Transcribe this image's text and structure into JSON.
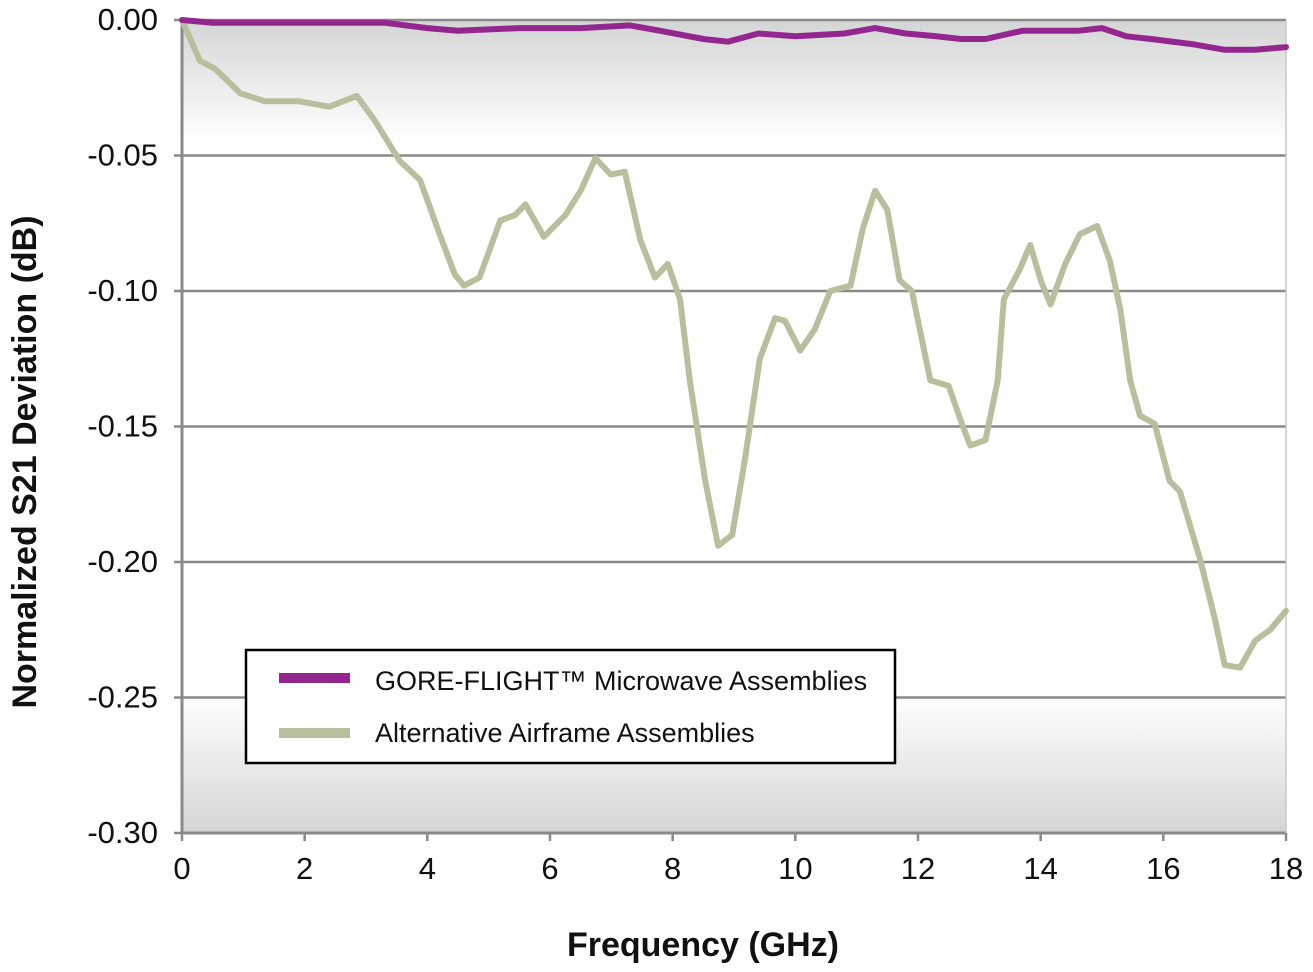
{
  "chart_data": {
    "type": "line",
    "title": "",
    "xlabel": "Frequency (GHz)",
    "ylabel": "Normalized S21 Deviation (dB)",
    "xlim": [
      0,
      18
    ],
    "ylim": [
      -0.3,
      0.0
    ],
    "xticks": [
      "0",
      "2",
      "4",
      "6",
      "8",
      "10",
      "12",
      "14",
      "16",
      "18"
    ],
    "xtick_values": [
      0,
      2,
      4,
      6,
      8,
      10,
      12,
      14,
      16,
      18
    ],
    "yticks": [
      "0.00",
      "-0.05",
      "-0.10",
      "-0.15",
      "-0.20",
      "-0.25",
      "-0.30"
    ],
    "ytick_values": [
      0,
      -0.05,
      -0.1,
      -0.15,
      -0.2,
      -0.25,
      -0.3
    ],
    "grid": "horizontal",
    "legend_position": "bottom-left",
    "series": [
      {
        "name": "GORE-FLIGHT™ Microwave Assemblies",
        "color": "#93278f",
        "x": [
          0,
          0.5,
          1.5,
          2.5,
          3.3,
          4.0,
          4.5,
          5.5,
          6.5,
          7.3,
          7.8,
          8.5,
          8.9,
          9.4,
          10.0,
          10.8,
          11.3,
          11.8,
          12.3,
          12.7,
          13.1,
          13.7,
          14.2,
          14.6,
          15.0,
          15.4,
          15.8,
          16.5,
          17.0,
          17.5,
          18.0
        ],
        "y": [
          0,
          -0.001,
          -0.001,
          -0.001,
          -0.001,
          -0.003,
          -0.004,
          -0.003,
          -0.003,
          -0.002,
          -0.004,
          -0.007,
          -0.008,
          -0.005,
          -0.006,
          -0.005,
          -0.003,
          -0.005,
          -0.006,
          -0.007,
          -0.007,
          -0.004,
          -0.004,
          -0.004,
          -0.003,
          -0.006,
          -0.007,
          -0.009,
          -0.011,
          -0.011,
          -0.01
        ]
      },
      {
        "name": "Alternative Airframe Assemblies",
        "color": "#b8bf9d",
        "x": [
          0,
          0.29,
          0.54,
          0.95,
          1.35,
          1.92,
          2.4,
          2.85,
          3.14,
          3.55,
          3.88,
          4.2,
          4.45,
          4.6,
          4.85,
          5.19,
          5.43,
          5.6,
          5.9,
          6.25,
          6.5,
          6.74,
          6.99,
          7.22,
          7.47,
          7.71,
          7.92,
          8.12,
          8.28,
          8.53,
          8.74,
          8.97,
          9.18,
          9.42,
          9.67,
          9.83,
          10.08,
          10.32,
          10.57,
          10.9,
          11.1,
          11.3,
          11.5,
          11.7,
          11.9,
          12.2,
          12.5,
          12.7,
          12.85,
          13.1,
          13.3,
          13.4,
          13.66,
          13.83,
          14.0,
          14.16,
          14.4,
          14.64,
          14.92,
          15.13,
          15.3,
          15.46,
          15.62,
          15.86,
          16.1,
          16.27,
          16.6,
          16.84,
          17.0,
          17.25,
          17.5,
          17.74,
          18.0
        ],
        "y": [
          0,
          -0.015,
          -0.018,
          -0.027,
          -0.03,
          -0.03,
          -0.032,
          -0.028,
          -0.037,
          -0.052,
          -0.059,
          -0.079,
          -0.094,
          -0.098,
          -0.095,
          -0.074,
          -0.072,
          -0.068,
          -0.08,
          -0.072,
          -0.063,
          -0.051,
          -0.057,
          -0.056,
          -0.081,
          -0.095,
          -0.09,
          -0.103,
          -0.133,
          -0.17,
          -0.194,
          -0.19,
          -0.162,
          -0.125,
          -0.11,
          -0.111,
          -0.122,
          -0.114,
          -0.1,
          -0.098,
          -0.077,
          -0.063,
          -0.07,
          -0.096,
          -0.1,
          -0.133,
          -0.135,
          -0.148,
          -0.157,
          -0.155,
          -0.133,
          -0.103,
          -0.092,
          -0.083,
          -0.096,
          -0.105,
          -0.09,
          -0.079,
          -0.076,
          -0.089,
          -0.107,
          -0.133,
          -0.146,
          -0.149,
          -0.17,
          -0.174,
          -0.199,
          -0.221,
          -0.238,
          -0.239,
          -0.229,
          -0.225,
          -0.218
        ]
      }
    ]
  }
}
